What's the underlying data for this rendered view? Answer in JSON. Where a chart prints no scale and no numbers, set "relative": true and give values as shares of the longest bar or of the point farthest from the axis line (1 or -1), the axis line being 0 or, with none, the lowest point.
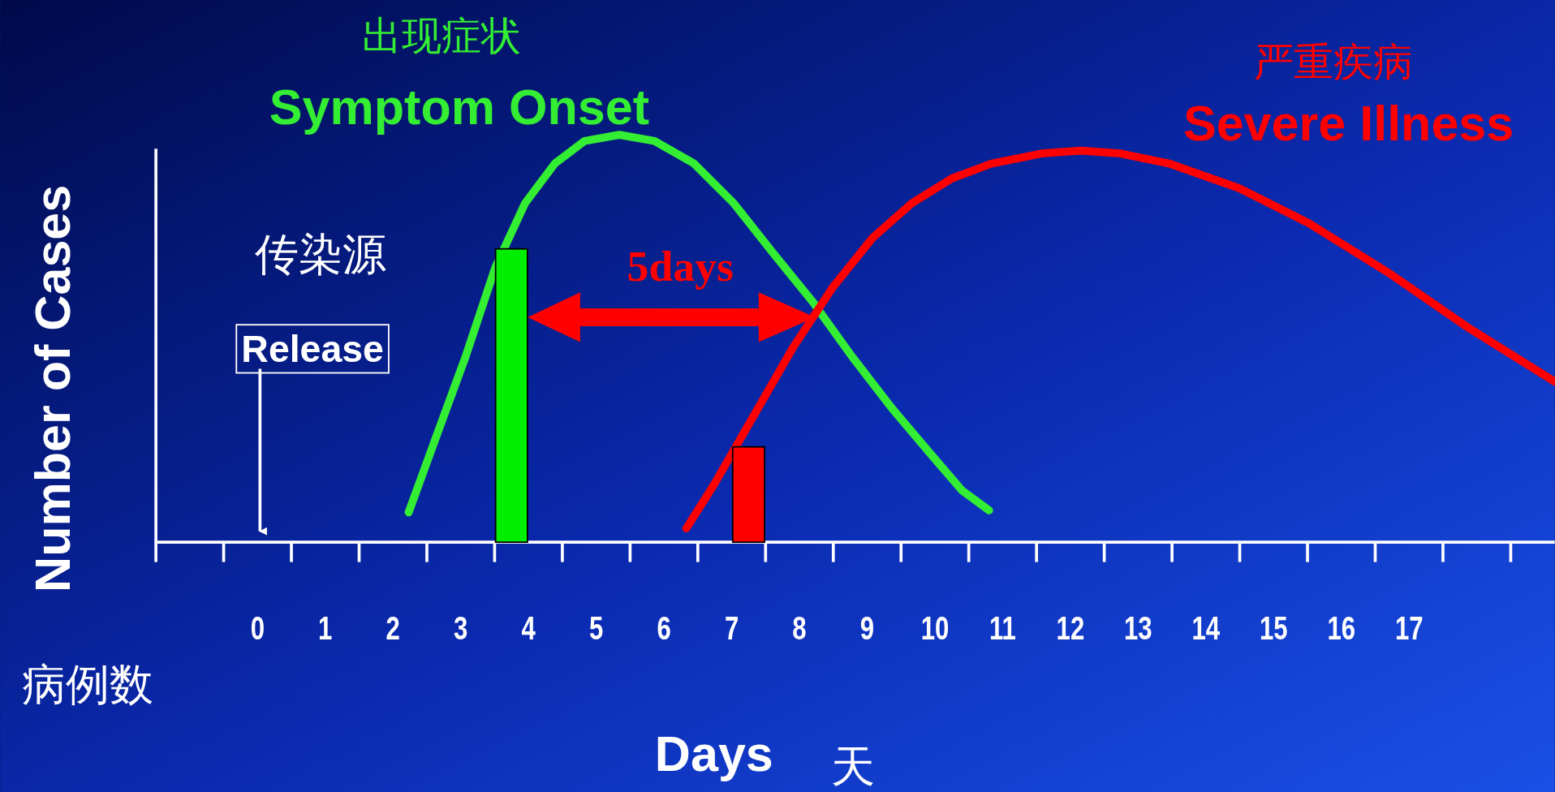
{
  "chart_data": {
    "type": "line",
    "relative": true,
    "xlabel": "Days",
    "ylabel": "Number of Cases",
    "xlim": [
      -1.5,
      19.15
    ],
    "xticks": [
      0,
      1,
      2,
      3,
      4,
      5,
      6,
      7,
      8,
      9,
      10,
      11,
      12,
      13,
      14,
      15,
      16,
      17
    ],
    "series": [
      {
        "name": "Symptom Onset",
        "color": "#33ee33",
        "x": [
          2.23,
          2.64,
          3.07,
          3.51,
          3.95,
          4.39,
          4.83,
          5.34,
          5.86,
          6.44,
          7.03,
          7.61,
          8.2,
          8.78,
          9.37,
          9.96,
          10.4,
          10.8
        ],
        "values": [
          0.073,
          0.26,
          0.455,
          0.674,
          0.832,
          0.93,
          0.985,
          1,
          0.985,
          0.93,
          0.832,
          0.71,
          0.589,
          0.455,
          0.328,
          0.212,
          0.127,
          0.078
        ]
      },
      {
        "name": "Severe Illness",
        "color": "#ff0000",
        "x": [
          6.33,
          6.73,
          7.32,
          7.91,
          8.49,
          9.08,
          9.66,
          10.25,
          10.83,
          11.57,
          12.15,
          12.74,
          13.47,
          14.49,
          15.52,
          16.69,
          17.86,
          19.15
        ],
        "values": [
          0.034,
          0.139,
          0.309,
          0.479,
          0.625,
          0.747,
          0.832,
          0.893,
          0.929,
          0.954,
          0.961,
          0.954,
          0.929,
          0.869,
          0.783,
          0.662,
          0.528,
          0.394
        ]
      },
      {
        "type": "bar",
        "color": "#00ee00",
        "x": [
          3.75
        ],
        "values": [
          0.72
        ]
      },
      {
        "type": "bar",
        "color": "#ff0000",
        "x": [
          7.25
        ],
        "values": [
          0.234
        ]
      }
    ],
    "annotations": [
      "出现症状",
      "严重疾病",
      "传染源",
      "Release",
      "5days",
      "病例数",
      "天"
    ]
  }
}
